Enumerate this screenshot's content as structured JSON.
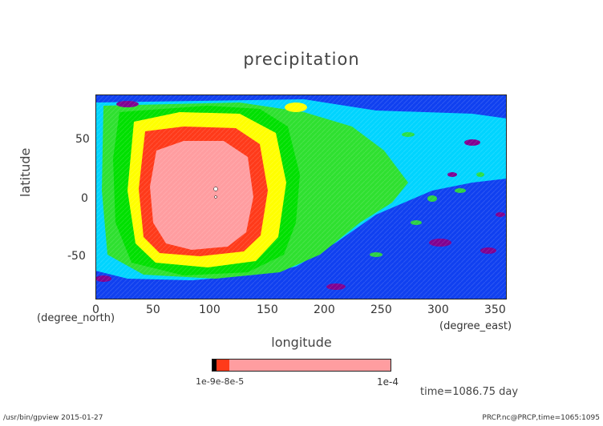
{
  "chart_data": {
    "type": "heatmap",
    "title": "precipitation",
    "xlabel": "longitude",
    "ylabel": "latitude",
    "x_unit": "(degree_east)",
    "y_unit": "(degree_north)",
    "xlim": [
      0,
      360
    ],
    "ylim": [
      -90,
      90
    ],
    "xticks": [
      "0",
      "50",
      "100",
      "150",
      "200",
      "250",
      "300",
      "350"
    ],
    "yticks": [
      "50",
      "0",
      "-50"
    ],
    "levels": [
      "#ff9da0",
      "#ff3a1a",
      "#ffff00",
      "#00e000",
      "#2fe030",
      "#00d4ff",
      "#0040ff",
      "#800090"
    ],
    "colorbar": {
      "tick_labels": [
        "1e-4"
      ],
      "overlapped_labels": "1e-9e-8e-5"
    },
    "time_label": "time=1086.75 day",
    "footer_left": "/usr/bin/gpview  2015-01-27",
    "footer_right": "PRCP.nc@PRCP,time=1065:1095"
  }
}
